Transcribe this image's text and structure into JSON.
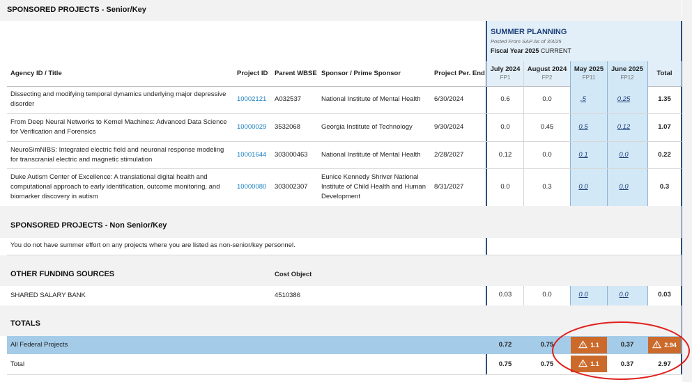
{
  "sections": {
    "senior_title": "SPONSORED PROJECTS - Senior/Key",
    "nonsenior_title": "SPONSORED PROJECTS - Non Senior/Key",
    "nonsenior_message": "You do not have summer effort on any projects where you are listed as non-senior/key personnel.",
    "other_title": "OTHER FUNDING SOURCES",
    "other_cost_object_header": "Cost Object",
    "totals_title": "TOTALS"
  },
  "summer": {
    "title": "SUMMER PLANNING",
    "posted": "Posted From SAP As of 3/4/25",
    "fiscal_year": "Fiscal Year 2025",
    "fiscal_status": "CURRENT"
  },
  "headers": {
    "agency": "Agency ID / Title",
    "project_id": "Project ID",
    "parent_wbse": "Parent WBSE",
    "sponsor": "Sponsor / Prime Sponsor",
    "period_end": "Project Per. End",
    "months": [
      {
        "label": "July 2024",
        "fp": "FP1"
      },
      {
        "label": "August 2024",
        "fp": "FP2"
      },
      {
        "label": "May 2025",
        "fp": "FP11"
      },
      {
        "label": "June 2025",
        "fp": "FP12"
      }
    ],
    "total": "Total"
  },
  "projects": [
    {
      "title_l1": "Dissecting and modifying temporal dynamics underlying major depressive",
      "title_l2": "disorder",
      "title_l3": "",
      "project_id": "10002121",
      "wbse": "A032537",
      "sponsor_l1": "National Institute of Mental Health",
      "sponsor_l2": "",
      "sponsor_l3": "",
      "end": "6/30/2024",
      "jul": "0.6",
      "aug": "0.0",
      "may": ".5",
      "jun": "0.25",
      "total": "1.35"
    },
    {
      "title_l1": "From Deep Neural Networks to Kernel Machines: Advanced Data Science",
      "title_l2": "for Verification and Forensics",
      "title_l3": "",
      "project_id": "10000029",
      "wbse": "3532068",
      "sponsor_l1": "Georgia Institute of Technology",
      "sponsor_l2": "",
      "sponsor_l3": "",
      "end": "9/30/2024",
      "jul": "0.0",
      "aug": "0.45",
      "may": "0.5",
      "jun": "0.12",
      "total": "1.07"
    },
    {
      "title_l1": "NeuroSimNIBS: Integrated electric field and neuronal response modeling",
      "title_l2": "for transcranial electric and magnetic stimulation",
      "title_l3": "",
      "project_id": "10001644",
      "wbse": "303000463",
      "sponsor_l1": "National Institute of Mental Health",
      "sponsor_l2": "",
      "sponsor_l3": "",
      "end": "2/28/2027",
      "jul": "0.12",
      "aug": "0.0",
      "may": "0.1",
      "jun": "0.0",
      "total": "0.22"
    },
    {
      "title_l1": "Duke Autism Center of Excellence: A translational digital health and",
      "title_l2": "computational approach to early identification, outcome monitoring, and",
      "title_l3": "biomarker discovery in autism",
      "project_id": "10000080",
      "wbse": "303002307",
      "sponsor_l1": "Eunice Kennedy Shriver National",
      "sponsor_l2": "Institute of Child Health and Human",
      "sponsor_l3": "Development",
      "end": "8/31/2027",
      "jul": "0.0",
      "aug": "0.3",
      "may": "0.0",
      "jun": "0.0",
      "total": "0.3"
    }
  ],
  "other": {
    "name": "SHARED SALARY BANK",
    "cost_object": "4510386",
    "jul": "0.03",
    "aug": "0.0",
    "may": "0.0",
    "jun": "0.0",
    "total": "0.03"
  },
  "totals": {
    "federal": {
      "label": "All Federal Projects",
      "jul": "0.72",
      "aug": "0.75",
      "may": "1.1",
      "jun": "0.37",
      "total": "2.94"
    },
    "total": {
      "label": "Total",
      "jul": "0.75",
      "aug": "0.75",
      "may": "1.1",
      "jun": "0.37",
      "total": "2.97"
    }
  },
  "colors": {
    "summer_panel": "#e2eff8",
    "editable_cell": "#d3e8f6",
    "warning": "#cc6a2b",
    "federal_row": "#a4cbe8",
    "link": "#1a7fc1",
    "annotation_circle": "#e0201d"
  },
  "icons": {
    "warning": "warning-triangle-icon"
  }
}
